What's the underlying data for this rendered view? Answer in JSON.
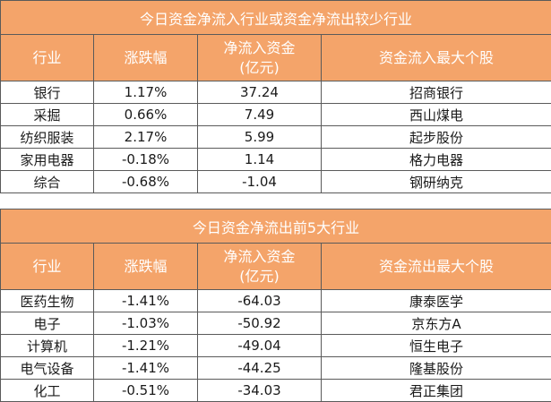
{
  "table_inflow": {
    "title": "今日资金净流入行业或资金净流出较少行业",
    "headers": {
      "industry": "行业",
      "change": "涨跌幅",
      "flow_line1": "净流入资金",
      "flow_line2": "(亿元)",
      "stock": "资金流入最大个股"
    },
    "rows": [
      {
        "industry": "银行",
        "change": "1.17%",
        "flow": "37.24",
        "stock": "招商银行"
      },
      {
        "industry": "采掘",
        "change": "0.66%",
        "flow": "7.49",
        "stock": "西山煤电"
      },
      {
        "industry": "纺织服装",
        "change": "2.17%",
        "flow": "5.99",
        "stock": "起步股份"
      },
      {
        "industry": "家用电器",
        "change": "-0.18%",
        "flow": "1.14",
        "stock": "格力电器"
      },
      {
        "industry": "综合",
        "change": "-0.68%",
        "flow": "-1.04",
        "stock": "钢研纳克"
      }
    ]
  },
  "table_outflow": {
    "title": "今日资金净流出前5大行业",
    "headers": {
      "industry": "行业",
      "change": "涨跌幅",
      "flow_line1": "净流入资金",
      "flow_line2": "(亿元)",
      "stock": "资金流出最大个股"
    },
    "rows": [
      {
        "industry": "医药生物",
        "change": "-1.41%",
        "flow": "-64.03",
        "stock": "康泰医学"
      },
      {
        "industry": "电子",
        "change": "-1.03%",
        "flow": "-50.92",
        "stock": "京东方A"
      },
      {
        "industry": "计算机",
        "change": "-1.21%",
        "flow": "-49.04",
        "stock": "恒生电子"
      },
      {
        "industry": "电气设备",
        "change": "-1.41%",
        "flow": "-44.25",
        "stock": "隆基股份"
      },
      {
        "industry": "化工",
        "change": "-0.51%",
        "flow": "-34.03",
        "stock": "君正集团"
      }
    ]
  }
}
